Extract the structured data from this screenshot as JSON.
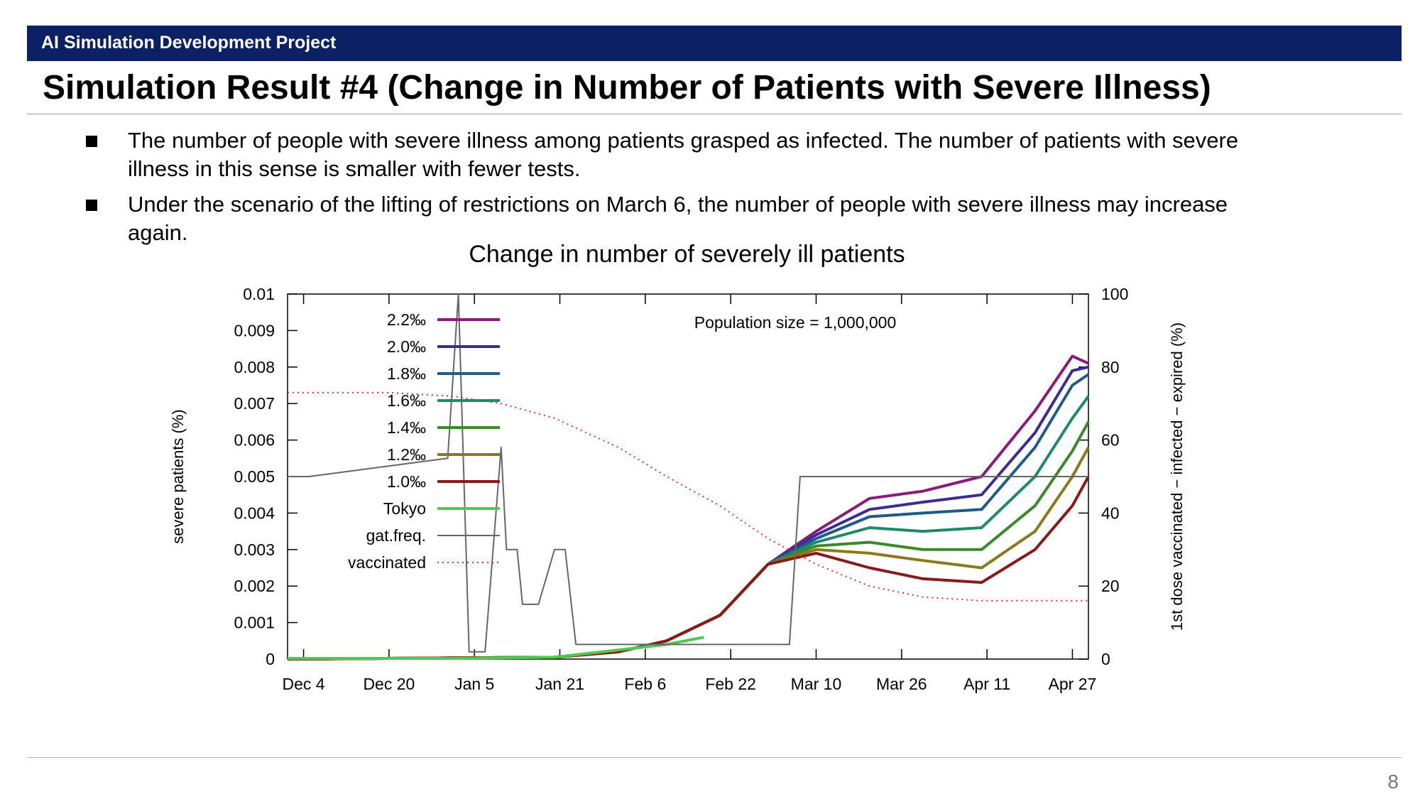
{
  "header": {
    "project_label": "AI Simulation Development Project"
  },
  "slide": {
    "title": "Simulation Result #4 (Change in Number of Patients with Severe Illness)",
    "bullets": [
      "The number of people with severe illness among patients grasped as infected. The number of patients with severe illness in this sense is smaller with fewer tests.",
      "Under the scenario of the lifting of restrictions on March 6, the number of people with severe illness may increase again."
    ],
    "page_number": "8"
  },
  "chart_data": {
    "type": "line",
    "title": "Change in number of severely ill patients",
    "annotation": "Population size = 1,000,000",
    "ylabel": "severe patients (%)",
    "y2label": "1st dose vaccinated − infected − expired (%)",
    "ylim": [
      0,
      0.01
    ],
    "y2lim": [
      0,
      100
    ],
    "x_ticks": [
      "Dec 4",
      "Dec 20",
      "Jan 5",
      "Jan 21",
      "Feb 6",
      "Feb 22",
      "Mar 10",
      "Mar 26",
      "Apr 11",
      "Apr 27"
    ],
    "y_ticks": [
      "0",
      "0.001",
      "0.002",
      "0.003",
      "0.004",
      "0.005",
      "0.006",
      "0.007",
      "0.008",
      "0.009",
      "0.01"
    ],
    "y2_ticks": [
      "0",
      "20",
      "40",
      "60",
      "80",
      "100"
    ],
    "legend_position": "top-left",
    "series": [
      {
        "name": "2.2‰",
        "color": "#8b1a7a",
        "style": "solid",
        "x": [
          "Dec 1",
          "Jan 20",
          "Feb 1",
          "Feb 10",
          "Feb 20",
          "Mar 1",
          "Mar 10",
          "Mar 20",
          "Mar 30",
          "Apr 10",
          "Apr 20",
          "Apr 27",
          "Apr 30"
        ],
        "y": [
          0,
          5e-05,
          0.0002,
          0.0005,
          0.0012,
          0.0026,
          0.0035,
          0.0044,
          0.0046,
          0.005,
          0.0068,
          0.0083,
          0.0081
        ]
      },
      {
        "name": "2.0‰",
        "color": "#3b2a9a",
        "style": "solid",
        "x": [
          "Dec 1",
          "Jan 20",
          "Feb 1",
          "Feb 10",
          "Feb 20",
          "Mar 1",
          "Mar 10",
          "Mar 20",
          "Mar 30",
          "Apr 10",
          "Apr 20",
          "Apr 27",
          "Apr 30"
        ],
        "y": [
          0,
          5e-05,
          0.0002,
          0.0005,
          0.0012,
          0.0026,
          0.0034,
          0.0041,
          0.0043,
          0.0045,
          0.0062,
          0.0079,
          0.008
        ]
      },
      {
        "name": "1.8‰",
        "color": "#1f5a8a",
        "style": "solid",
        "x": [
          "Dec 1",
          "Jan 20",
          "Feb 1",
          "Feb 10",
          "Feb 20",
          "Mar 1",
          "Mar 10",
          "Mar 20",
          "Mar 30",
          "Apr 10",
          "Apr 20",
          "Apr 27",
          "Apr 30"
        ],
        "y": [
          0,
          5e-05,
          0.0002,
          0.0005,
          0.0012,
          0.0026,
          0.0033,
          0.0039,
          0.004,
          0.0041,
          0.0058,
          0.0075,
          0.0078
        ]
      },
      {
        "name": "1.6‰",
        "color": "#1f8a6a",
        "style": "solid",
        "x": [
          "Dec 1",
          "Jan 20",
          "Feb 1",
          "Feb 10",
          "Feb 20",
          "Mar 1",
          "Mar 10",
          "Mar 20",
          "Mar 30",
          "Apr 10",
          "Apr 20",
          "Apr 27",
          "Apr 30"
        ],
        "y": [
          0,
          5e-05,
          0.0002,
          0.0005,
          0.0012,
          0.0026,
          0.0032,
          0.0036,
          0.0035,
          0.0036,
          0.005,
          0.0066,
          0.0072
        ]
      },
      {
        "name": "1.4‰",
        "color": "#3a8a2a",
        "style": "solid",
        "x": [
          "Dec 1",
          "Jan 20",
          "Feb 1",
          "Feb 10",
          "Feb 20",
          "Mar 1",
          "Mar 10",
          "Mar 20",
          "Mar 30",
          "Apr 10",
          "Apr 20",
          "Apr 27",
          "Apr 30"
        ],
        "y": [
          0,
          5e-05,
          0.0002,
          0.0005,
          0.0012,
          0.0026,
          0.0031,
          0.0032,
          0.003,
          0.003,
          0.0042,
          0.0057,
          0.0065
        ]
      },
      {
        "name": "1.2‰",
        "color": "#8a7a1a",
        "style": "solid",
        "x": [
          "Dec 1",
          "Jan 20",
          "Feb 1",
          "Feb 10",
          "Feb 20",
          "Mar 1",
          "Mar 10",
          "Mar 20",
          "Mar 30",
          "Apr 10",
          "Apr 20",
          "Apr 27",
          "Apr 30"
        ],
        "y": [
          0,
          5e-05,
          0.0002,
          0.0005,
          0.0012,
          0.0026,
          0.003,
          0.0029,
          0.0027,
          0.0025,
          0.0035,
          0.005,
          0.0058
        ]
      },
      {
        "name": "1.0‰",
        "color": "#8a1a1a",
        "style": "solid",
        "x": [
          "Dec 1",
          "Jan 20",
          "Feb 1",
          "Feb 10",
          "Feb 20",
          "Mar 1",
          "Mar 10",
          "Mar 20",
          "Mar 30",
          "Apr 10",
          "Apr 20",
          "Apr 27",
          "Apr 30"
        ],
        "y": [
          0,
          5e-05,
          0.0002,
          0.0005,
          0.0012,
          0.0026,
          0.0029,
          0.0025,
          0.0022,
          0.0021,
          0.003,
          0.0042,
          0.005
        ]
      },
      {
        "name": "Tokyo",
        "color": "#4ccc4c",
        "style": "solid",
        "x": [
          "Dec 1",
          "Jan 1",
          "Jan 20",
          "Feb 1",
          "Feb 10",
          "Feb 17"
        ],
        "y": [
          2e-05,
          2e-05,
          5e-05,
          0.00025,
          0.0004,
          0.0006
        ]
      },
      {
        "name": "gat.freq.",
        "color": "#666666",
        "style": "solid",
        "axis": "right",
        "x": [
          "Dec 1",
          "Dec 5",
          "Dec 31",
          "Jan 2",
          "Jan 4",
          "Jan 7",
          "Jan 10",
          "Jan 11",
          "Jan 13",
          "Jan 14",
          "Jan 17",
          "Jan 20",
          "Jan 22",
          "Jan 24",
          "Jan 25",
          "Jan 27",
          "Jan 30",
          "Feb 1",
          "Feb 15",
          "Mar 5",
          "Mar 7",
          "Mar 15",
          "Apr 20",
          "Apr 30"
        ],
        "y": [
          50,
          50,
          55,
          100,
          2,
          2,
          58,
          30,
          30,
          15,
          15,
          30,
          30,
          4,
          4,
          4,
          4,
          4,
          4,
          4,
          50,
          50,
          50,
          50
        ]
      },
      {
        "name": "vaccinated",
        "color": "#e03030",
        "style": "dotted",
        "axis": "right",
        "x": [
          "Dec 1",
          "Dec 20",
          "Jan 1",
          "Jan 10",
          "Jan 20",
          "Feb 1",
          "Feb 10",
          "Feb 20",
          "Mar 1",
          "Mar 10",
          "Mar 20",
          "Mar 30",
          "Apr 10",
          "Apr 20",
          "Apr 30"
        ],
        "y": [
          73,
          73,
          72,
          70,
          66,
          58,
          50,
          42,
          33,
          26,
          20,
          17,
          16,
          16,
          16
        ]
      }
    ]
  }
}
